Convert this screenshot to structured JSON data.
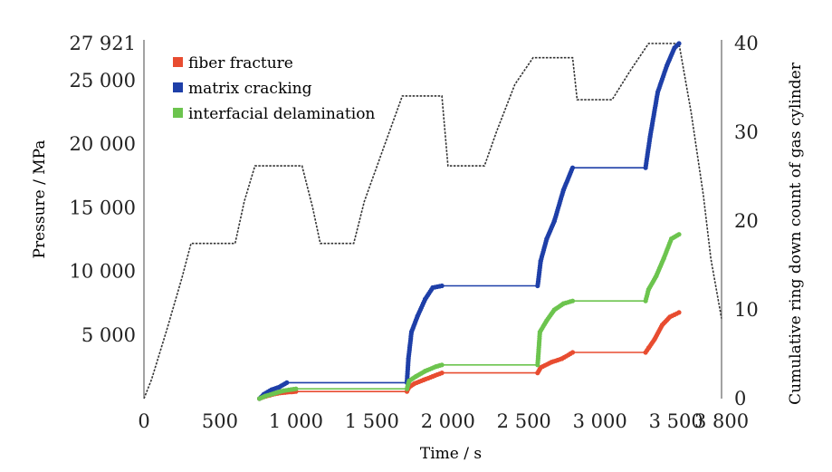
{
  "chart_data": {
    "type": "line",
    "title": "",
    "xlabel": "Time / s",
    "ylabel_left": "Pressure / MPa",
    "ylabel_right": "Cumulative ring down count of gas cylinder",
    "xlim": [
      0,
      3800
    ],
    "ylim_left": [
      0,
      27921
    ],
    "ylim_right": [
      0,
      40
    ],
    "x_ticks": [
      0,
      500,
      1000,
      1500,
      2000,
      2500,
      3000,
      3500,
      3800
    ],
    "x_tick_labels": [
      "0",
      "500",
      "1 000",
      "1 500",
      "2 000",
      "2 500",
      "3 000",
      "3 500",
      "3 800"
    ],
    "y_left_ticks": [
      5000,
      10000,
      15000,
      20000,
      25000,
      27921
    ],
    "y_left_tick_labels": [
      "5 000",
      "10 000",
      "15 000",
      "20 000",
      "25 000",
      "27 921"
    ],
    "y_right_ticks": [
      0,
      10,
      20,
      30,
      40
    ],
    "y_right_tick_labels": [
      "0",
      "10",
      "20",
      "30",
      "40"
    ],
    "grid": false,
    "legend_position": "top-left",
    "pressure_series": {
      "axis": "left",
      "color": "#333333",
      "points": [
        [
          0,
          0
        ],
        [
          50,
          1500
        ],
        [
          150,
          5400
        ],
        [
          250,
          9500
        ],
        [
          310,
          12200
        ],
        [
          600,
          12200
        ],
        [
          660,
          15500
        ],
        [
          730,
          18300
        ],
        [
          1040,
          18300
        ],
        [
          1110,
          15000
        ],
        [
          1160,
          12200
        ],
        [
          1380,
          12200
        ],
        [
          1450,
          15500
        ],
        [
          1570,
          19500
        ],
        [
          1700,
          23800
        ],
        [
          1960,
          23800
        ],
        [
          2000,
          18300
        ],
        [
          2240,
          18300
        ],
        [
          2320,
          21000
        ],
        [
          2440,
          24700
        ],
        [
          2560,
          26800
        ],
        [
          2820,
          26800
        ],
        [
          2850,
          23500
        ],
        [
          3080,
          23500
        ],
        [
          3200,
          25800
        ],
        [
          3320,
          27921
        ],
        [
          3520,
          27921
        ],
        [
          3600,
          22500
        ],
        [
          3680,
          16000
        ],
        [
          3730,
          11000
        ],
        [
          3800,
          6300
        ]
      ]
    },
    "series": [
      {
        "name": "fiber fracture",
        "color": "#e84c30",
        "points": [
          [
            760,
            0
          ],
          [
            790,
            0.2
          ],
          [
            830,
            0.4
          ],
          [
            880,
            0.6
          ],
          [
            930,
            0.7
          ],
          [
            1000,
            0.8
          ],
          [
            1730,
            0.8
          ],
          [
            1745,
            1.3
          ],
          [
            1780,
            1.7
          ],
          [
            1840,
            2.1
          ],
          [
            1900,
            2.5
          ],
          [
            1960,
            2.9
          ],
          [
            2590,
            2.9
          ],
          [
            2610,
            3.5
          ],
          [
            2680,
            4.1
          ],
          [
            2750,
            4.5
          ],
          [
            2820,
            5.2
          ],
          [
            3300,
            5.2
          ],
          [
            3320,
            5.7
          ],
          [
            3360,
            6.7
          ],
          [
            3410,
            8.3
          ],
          [
            3460,
            9.2
          ],
          [
            3520,
            9.7
          ]
        ]
      },
      {
        "name": "matrix cracking",
        "color": "#1e3fa8",
        "points": [
          [
            760,
            0
          ],
          [
            790,
            0.5
          ],
          [
            840,
            1.0
          ],
          [
            890,
            1.3
          ],
          [
            940,
            1.8
          ],
          [
            1000,
            1.8
          ],
          [
            1730,
            1.8
          ],
          [
            1740,
            4.5
          ],
          [
            1760,
            7.5
          ],
          [
            1800,
            9.3
          ],
          [
            1850,
            11.2
          ],
          [
            1900,
            12.5
          ],
          [
            1960,
            12.7
          ],
          [
            2590,
            12.7
          ],
          [
            2610,
            15.5
          ],
          [
            2650,
            18.0
          ],
          [
            2700,
            20.0
          ],
          [
            2760,
            23.5
          ],
          [
            2820,
            26.0
          ],
          [
            3300,
            26.0
          ],
          [
            3330,
            29.5
          ],
          [
            3380,
            34.5
          ],
          [
            3440,
            37.5
          ],
          [
            3490,
            39.5
          ],
          [
            3520,
            40
          ]
        ]
      },
      {
        "name": "interfacial delamination",
        "color": "#6cc44e",
        "points": [
          [
            760,
            0
          ],
          [
            800,
            0.3
          ],
          [
            860,
            0.6
          ],
          [
            920,
            0.9
          ],
          [
            1000,
            1.1
          ],
          [
            1730,
            1.1
          ],
          [
            1745,
            2.0
          ],
          [
            1790,
            2.5
          ],
          [
            1850,
            3.1
          ],
          [
            1920,
            3.6
          ],
          [
            1960,
            3.8
          ],
          [
            2590,
            3.8
          ],
          [
            2605,
            7.5
          ],
          [
            2650,
            8.8
          ],
          [
            2700,
            10.0
          ],
          [
            2760,
            10.7
          ],
          [
            2820,
            11.0
          ],
          [
            3300,
            11.0
          ],
          [
            3320,
            12.3
          ],
          [
            3370,
            13.8
          ],
          [
            3420,
            15.8
          ],
          [
            3470,
            18.0
          ],
          [
            3520,
            18.5
          ]
        ]
      }
    ]
  }
}
